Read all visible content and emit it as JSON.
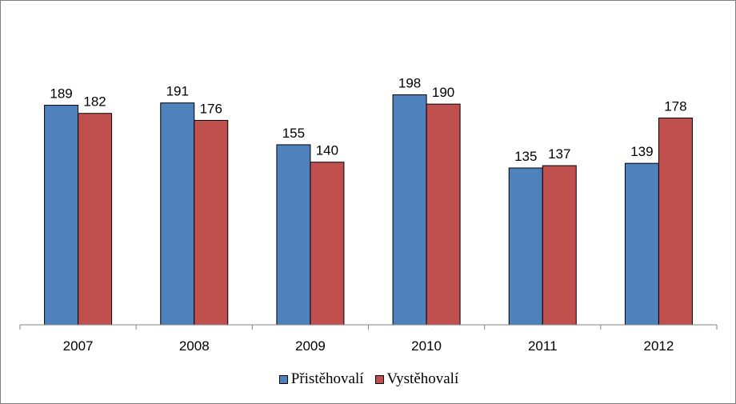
{
  "chart_data": {
    "type": "bar",
    "categories": [
      "2007",
      "2008",
      "2009",
      "2010",
      "2011",
      "2012"
    ],
    "series": [
      {
        "name": "Přistěhovalí",
        "color": "#4f81bd",
        "values": [
          189,
          191,
          155,
          198,
          135,
          139
        ]
      },
      {
        "name": "Vystěhovalí",
        "color": "#c0504d",
        "values": [
          182,
          176,
          140,
          190,
          137,
          178
        ]
      }
    ],
    "title": "",
    "xlabel": "",
    "ylabel": "",
    "ylim": [
      0,
      215
    ],
    "grid": false,
    "legend_position": "bottom",
    "data_labels": true
  }
}
